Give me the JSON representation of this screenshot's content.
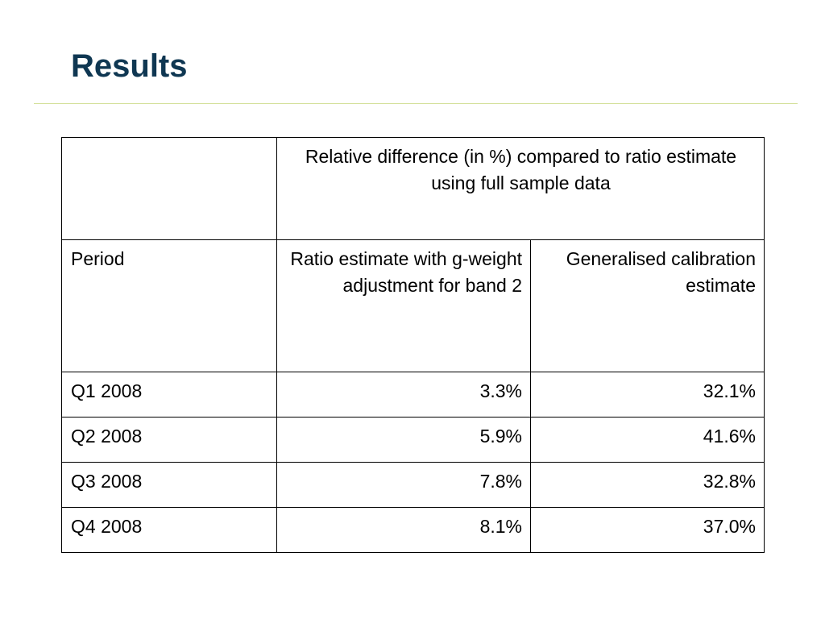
{
  "slide": {
    "title": "Results"
  },
  "table": {
    "group_header": "Relative difference (in %) compared to ratio estimate using full sample data",
    "columns": [
      "Period",
      "Ratio estimate with g-weight adjustment for band 2",
      "Generalised calibration estimate"
    ],
    "rows": [
      {
        "period": "Q1 2008",
        "ratio": "3.3%",
        "calibration": "32.1%"
      },
      {
        "period": "Q2 2008",
        "ratio": "5.9%",
        "calibration": "41.6%"
      },
      {
        "period": "Q3 2008",
        "ratio": "7.8%",
        "calibration": "32.8%"
      },
      {
        "period": "Q4 2008",
        "ratio": "8.1%",
        "calibration": "37.0%"
      }
    ]
  },
  "colors": {
    "title": "#0f3752",
    "rule": "#d4e09b",
    "border": "#000000"
  }
}
